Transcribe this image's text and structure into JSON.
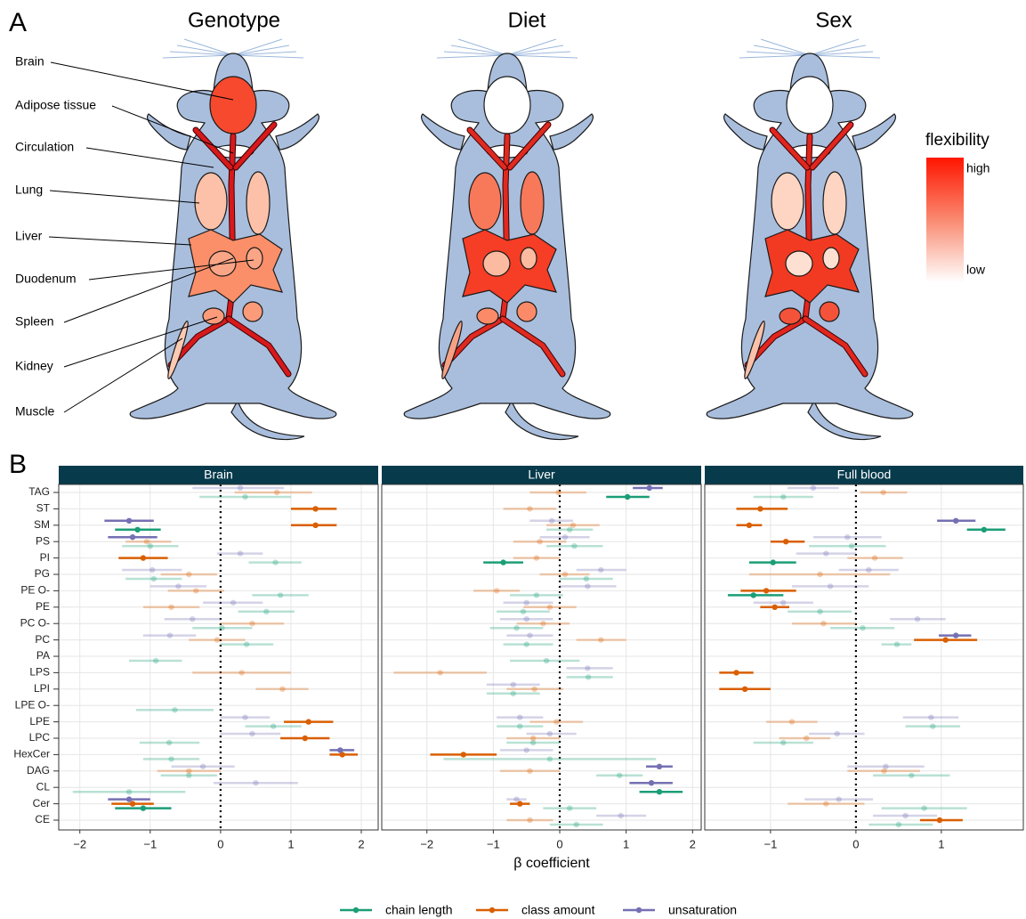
{
  "panel_a": {
    "label": "A",
    "titles": [
      "Genotype",
      "Diet",
      "Sex"
    ],
    "organs": [
      "Brain",
      "Adipose tissue",
      "Circulation",
      "Lung",
      "Liver",
      "Duodenum",
      "Spleen",
      "Kidney",
      "Muscle"
    ],
    "legend": {
      "title": "flexibility",
      "high": "high",
      "low": "low"
    }
  },
  "chart_data": {
    "type": "forest",
    "panel_label": "B",
    "xlabel": "β coefficient",
    "grid": true,
    "reference_line": 0,
    "categories": [
      "TAG",
      "ST",
      "SM",
      "PS",
      "PI",
      "PG",
      "PE O-",
      "PE",
      "PC O-",
      "PC",
      "PA",
      "LPS",
      "LPI",
      "LPE O-",
      "LPE",
      "LPC",
      "HexCer",
      "DAG",
      "CL",
      "Cer",
      "CE"
    ],
    "series": [
      {
        "name": "chain length",
        "color": "#1b9e77"
      },
      {
        "name": "class amount",
        "color": "#d95f02"
      },
      {
        "name": "unsaturation",
        "color": "#7570b3"
      }
    ],
    "facets": [
      {
        "title": "Brain",
        "xlim": [
          -2.3,
          2.24
        ],
        "xticks": [
          {
            "value": -2,
            "label": "−2"
          },
          {
            "value": -1,
            "label": "−1"
          },
          0,
          1,
          2
        ],
        "series": [
          {
            "values": [
              0.35,
              null,
              -1.18,
              -1.0,
              0.78,
              -0.95,
              0.85,
              0.65,
              0.02,
              0.37,
              -0.92,
              null,
              null,
              -0.65,
              0.75,
              -0.73,
              -0.7,
              -0.45,
              -1.3,
              -1.1,
              null
            ],
            "lower": [
              -0.3,
              null,
              -1.5,
              -1.4,
              0.4,
              -1.35,
              0.45,
              0.25,
              -0.4,
              0.0,
              -1.3,
              null,
              null,
              -1.2,
              0.35,
              -1.15,
              -1.1,
              -0.85,
              -2.1,
              -1.5,
              null
            ],
            "upper": [
              1.0,
              null,
              -0.85,
              -0.6,
              1.15,
              -0.55,
              1.25,
              1.05,
              0.45,
              0.75,
              -0.55,
              null,
              null,
              -0.1,
              1.15,
              -0.3,
              -0.3,
              -0.05,
              -0.5,
              -0.7,
              null
            ],
            "significant": [
              false,
              false,
              true,
              false,
              false,
              false,
              false,
              false,
              false,
              false,
              false,
              false,
              false,
              false,
              false,
              false,
              false,
              false,
              false,
              true,
              false
            ]
          },
          {
            "values": [
              0.8,
              1.35,
              1.35,
              -1.05,
              -1.1,
              -0.45,
              -0.35,
              -0.7,
              0.45,
              -0.05,
              null,
              0.3,
              0.88,
              null,
              1.25,
              1.2,
              1.73,
              -0.45,
              null,
              -1.25,
              null
            ],
            "lower": [
              0.2,
              1.0,
              1.0,
              -1.35,
              -1.45,
              -0.85,
              -0.75,
              -1.1,
              0.0,
              -0.45,
              null,
              -0.4,
              0.5,
              null,
              0.9,
              0.85,
              1.55,
              -0.9,
              null,
              -1.55,
              null
            ],
            "upper": [
              1.3,
              1.65,
              1.65,
              -0.7,
              -0.75,
              -0.05,
              0.05,
              -0.3,
              0.9,
              0.35,
              null,
              1.0,
              1.25,
              null,
              1.6,
              1.55,
              1.95,
              0.0,
              null,
              -0.95,
              null
            ],
            "significant": [
              false,
              true,
              true,
              false,
              true,
              false,
              false,
              false,
              false,
              false,
              false,
              false,
              false,
              false,
              true,
              true,
              true,
              false,
              false,
              true,
              false
            ]
          },
          {
            "values": [
              0.28,
              null,
              -1.3,
              -1.25,
              0.28,
              -0.97,
              -0.6,
              0.18,
              -0.4,
              -0.72,
              null,
              null,
              null,
              null,
              0.35,
              0.45,
              1.7,
              -0.25,
              0.5,
              -1.3,
              null
            ],
            "lower": [
              -0.4,
              null,
              -1.65,
              -1.6,
              -0.05,
              -1.4,
              -1.0,
              -0.25,
              -0.8,
              -1.1,
              null,
              null,
              null,
              null,
              0.0,
              0.0,
              1.55,
              -0.7,
              -0.1,
              -1.6,
              null
            ],
            "upper": [
              0.9,
              null,
              -0.95,
              -0.9,
              0.6,
              -0.55,
              -0.2,
              0.6,
              0.0,
              -0.35,
              null,
              null,
              null,
              null,
              0.7,
              0.85,
              1.9,
              0.2,
              1.1,
              -1.0,
              null
            ],
            "significant": [
              false,
              false,
              true,
              true,
              false,
              false,
              false,
              false,
              false,
              false,
              false,
              false,
              false,
              false,
              false,
              false,
              true,
              false,
              false,
              true,
              false
            ]
          }
        ]
      },
      {
        "title": "Liver",
        "xlim": [
          -2.68,
          2.13
        ],
        "xticks": [
          {
            "value": -2,
            "label": "−2"
          },
          {
            "value": -1,
            "label": "−1"
          },
          0,
          1,
          2
        ],
        "series": [
          {
            "values": [
              1.02,
              null,
              0.15,
              0.22,
              -0.85,
              0.4,
              -0.35,
              -0.55,
              -0.65,
              -0.5,
              -0.2,
              0.43,
              -0.7,
              null,
              -0.6,
              -0.4,
              -0.15,
              0.9,
              1.5,
              0.15,
              0.25
            ],
            "lower": [
              0.7,
              null,
              -0.2,
              -0.2,
              -1.15,
              0.0,
              -0.75,
              -0.95,
              -1.05,
              -0.85,
              -0.75,
              0.1,
              -1.1,
              null,
              -0.95,
              -0.8,
              -1.75,
              0.55,
              1.2,
              -0.25,
              -0.15
            ],
            "upper": [
              1.35,
              null,
              0.5,
              0.65,
              -0.55,
              0.8,
              0.05,
              -0.15,
              -0.25,
              -0.1,
              0.3,
              0.8,
              -0.3,
              null,
              -0.25,
              0.0,
              1.45,
              1.25,
              1.85,
              0.55,
              0.65
            ],
            "significant": [
              true,
              false,
              false,
              false,
              true,
              false,
              false,
              false,
              false,
              false,
              false,
              false,
              false,
              false,
              false,
              false,
              false,
              false,
              true,
              false,
              false
            ]
          },
          {
            "values": [
              -0.02,
              -0.45,
              0.2,
              -0.3,
              -0.35,
              0.08,
              -0.95,
              -0.15,
              -0.25,
              0.62,
              null,
              -1.8,
              -0.38,
              null,
              -0.05,
              -0.4,
              -1.45,
              -0.45,
              null,
              -0.6,
              -0.45
            ],
            "lower": [
              -0.45,
              -0.85,
              -0.2,
              -0.7,
              -0.7,
              -0.3,
              -1.3,
              -0.55,
              -0.65,
              0.25,
              null,
              -2.5,
              -0.8,
              null,
              -0.45,
              -0.8,
              -1.95,
              -0.9,
              null,
              -0.75,
              -0.8
            ],
            "upper": [
              0.4,
              -0.05,
              0.6,
              0.1,
              0.0,
              0.45,
              -0.6,
              0.25,
              0.15,
              1.0,
              null,
              -1.1,
              0.05,
              null,
              0.35,
              0.0,
              -0.95,
              0.0,
              null,
              -0.45,
              -0.1
            ],
            "significant": [
              false,
              false,
              false,
              false,
              false,
              false,
              false,
              false,
              false,
              false,
              false,
              false,
              false,
              false,
              false,
              false,
              true,
              false,
              false,
              true,
              false
            ]
          },
          {
            "values": [
              1.35,
              null,
              -0.12,
              0.08,
              null,
              0.62,
              0.42,
              -0.5,
              -0.5,
              -0.45,
              null,
              0.42,
              -0.7,
              null,
              -0.6,
              -0.15,
              -0.5,
              1.5,
              1.38,
              -0.65,
              0.92
            ],
            "lower": [
              1.1,
              null,
              -0.45,
              -0.3,
              null,
              0.25,
              0.0,
              -0.85,
              -0.9,
              -0.8,
              null,
              0.1,
              -1.1,
              null,
              -0.95,
              -0.5,
              -0.9,
              1.3,
              1.05,
              -0.8,
              0.55
            ],
            "upper": [
              1.55,
              null,
              0.2,
              0.45,
              null,
              1.0,
              0.85,
              -0.1,
              -0.1,
              -0.1,
              null,
              0.8,
              -0.3,
              null,
              -0.25,
              0.25,
              -0.1,
              1.7,
              1.7,
              -0.5,
              1.3
            ],
            "significant": [
              true,
              false,
              false,
              false,
              false,
              false,
              false,
              false,
              false,
              false,
              false,
              false,
              false,
              false,
              false,
              false,
              false,
              true,
              true,
              false,
              false
            ]
          }
        ]
      },
      {
        "title": "Full blood",
        "xlim": [
          -1.77,
          1.96
        ],
        "xticks": [
          {
            "value": -1,
            "label": "−1"
          },
          0,
          1
        ],
        "series": [
          {
            "values": [
              -0.85,
              null,
              1.5,
              -0.05,
              -0.97,
              null,
              -1.2,
              -0.42,
              0.08,
              0.48,
              null,
              null,
              null,
              null,
              0.9,
              -0.85,
              null,
              0.65,
              null,
              0.8,
              0.5
            ],
            "lower": [
              -1.2,
              null,
              1.3,
              -0.55,
              -1.25,
              null,
              -1.5,
              -0.8,
              -0.3,
              0.3,
              null,
              null,
              null,
              null,
              0.58,
              -1.2,
              null,
              0.2,
              null,
              0.3,
              0.15
            ],
            "upper": [
              -0.5,
              null,
              1.75,
              0.35,
              -0.7,
              null,
              -0.85,
              -0.05,
              0.45,
              0.65,
              null,
              null,
              null,
              null,
              1.22,
              -0.5,
              null,
              1.1,
              null,
              1.3,
              0.9
            ],
            "significant": [
              false,
              false,
              true,
              false,
              true,
              false,
              true,
              false,
              false,
              false,
              false,
              false,
              false,
              false,
              false,
              false,
              false,
              false,
              false,
              false,
              false
            ]
          },
          {
            "values": [
              0.32,
              -1.12,
              -1.25,
              -0.82,
              0.22,
              -0.42,
              -1.05,
              -0.95,
              -0.38,
              1.05,
              null,
              -1.4,
              -1.3,
              null,
              -0.75,
              -0.58,
              null,
              0.33,
              null,
              -0.35,
              0.98
            ],
            "lower": [
              0.05,
              -1.4,
              -1.4,
              -1.0,
              -0.1,
              -1.25,
              -1.35,
              -1.12,
              -0.75,
              0.68,
              null,
              -1.6,
              -1.6,
              null,
              -1.05,
              -0.9,
              null,
              -0.1,
              null,
              -0.8,
              0.75
            ],
            "upper": [
              0.6,
              -0.8,
              -1.1,
              -0.6,
              0.55,
              0.4,
              -0.7,
              -0.78,
              0.0,
              1.42,
              null,
              -1.2,
              -1.0,
              null,
              -0.45,
              -0.3,
              null,
              0.75,
              null,
              0.1,
              1.25
            ],
            "significant": [
              false,
              true,
              true,
              true,
              false,
              false,
              true,
              true,
              false,
              true,
              false,
              true,
              true,
              false,
              false,
              false,
              false,
              false,
              false,
              false,
              true
            ]
          },
          {
            "values": [
              -0.5,
              null,
              1.17,
              -0.1,
              -0.35,
              0.15,
              -0.3,
              -0.85,
              0.72,
              1.17,
              null,
              null,
              null,
              null,
              0.88,
              -0.22,
              null,
              0.35,
              null,
              -0.2,
              0.58
            ],
            "lower": [
              -0.8,
              null,
              0.95,
              -0.5,
              -0.7,
              -0.2,
              -0.75,
              -1.2,
              0.4,
              0.97,
              null,
              null,
              null,
              null,
              0.55,
              -0.55,
              null,
              -0.1,
              null,
              -0.6,
              0.2
            ],
            "upper": [
              -0.2,
              null,
              1.4,
              0.3,
              0.0,
              0.5,
              0.15,
              -0.5,
              1.05,
              1.35,
              null,
              null,
              null,
              null,
              1.2,
              0.1,
              null,
              0.8,
              null,
              0.2,
              0.95
            ],
            "significant": [
              false,
              false,
              true,
              false,
              false,
              false,
              false,
              false,
              false,
              true,
              false,
              false,
              false,
              false,
              false,
              false,
              false,
              false,
              false,
              false,
              false
            ]
          }
        ]
      }
    ]
  }
}
